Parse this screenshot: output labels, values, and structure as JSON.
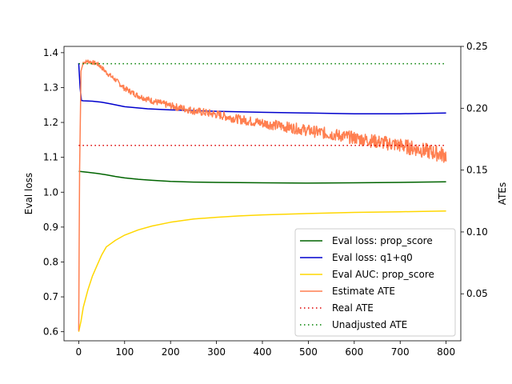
{
  "chart_data": {
    "type": "line",
    "title": "",
    "xlabel": "",
    "ylabel_left": "Eval loss",
    "ylabel_right": "ATEs",
    "xlim": [
      -32,
      832
    ],
    "ylim_left": [
      0.574,
      1.418
    ],
    "ylim_right": [
      0.012,
      0.25
    ],
    "xticks": [
      0,
      100,
      200,
      300,
      400,
      500,
      600,
      700,
      800
    ],
    "yticks_left": [
      0.6,
      0.7,
      0.8,
      0.9,
      1.0,
      1.1,
      1.2,
      1.3,
      1.4
    ],
    "yticks_right": [
      0.05,
      0.1,
      0.15,
      0.2,
      0.25
    ],
    "grid": false,
    "legend_position": "lower-right",
    "series": [
      {
        "name": "Eval loss: prop_score",
        "axis": "left",
        "style": "solid",
        "color": "#006400",
        "x": [
          0,
          20,
          40,
          60,
          80,
          100,
          130,
          160,
          200,
          250,
          300,
          400,
          500,
          600,
          700,
          800
        ],
        "y": [
          1.06,
          1.057,
          1.054,
          1.05,
          1.045,
          1.041,
          1.037,
          1.034,
          1.031,
          1.029,
          1.028,
          1.027,
          1.026,
          1.027,
          1.028,
          1.03
        ]
      },
      {
        "name": "Eval loss: q1+q0",
        "axis": "left",
        "style": "solid",
        "color": "#0000cd",
        "x": [
          0,
          3,
          6,
          10,
          30,
          50,
          70,
          100,
          150,
          200,
          300,
          400,
          500,
          600,
          700,
          800
        ],
        "y": [
          1.37,
          1.3,
          1.263,
          1.262,
          1.261,
          1.258,
          1.253,
          1.245,
          1.239,
          1.236,
          1.232,
          1.229,
          1.227,
          1.225,
          1.225,
          1.227
        ]
      },
      {
        "name": "Eval AUC: prop_score",
        "axis": "left",
        "style": "solid",
        "color": "#ffd700",
        "x": [
          0,
          5,
          10,
          20,
          30,
          40,
          50,
          60,
          80,
          100,
          130,
          160,
          200,
          250,
          300,
          350,
          400,
          500,
          600,
          700,
          800
        ],
        "y": [
          0.6,
          0.63,
          0.67,
          0.72,
          0.76,
          0.79,
          0.82,
          0.843,
          0.862,
          0.877,
          0.892,
          0.903,
          0.914,
          0.923,
          0.928,
          0.932,
          0.935,
          0.939,
          0.942,
          0.944,
          0.946
        ]
      },
      {
        "name": "Estimate ATE",
        "axis": "right",
        "style": "solid-noisy",
        "color": "#ff7f50",
        "x": [
          0,
          2,
          5,
          10,
          20,
          30,
          40,
          50,
          60,
          80,
          100,
          130,
          160,
          200,
          250,
          300,
          350,
          400,
          450,
          500,
          550,
          600,
          650,
          700,
          750,
          800
        ],
        "y": [
          0.02,
          0.15,
          0.23,
          0.237,
          0.238,
          0.237,
          0.236,
          0.233,
          0.229,
          0.223,
          0.216,
          0.21,
          0.206,
          0.202,
          0.198,
          0.195,
          0.191,
          0.188,
          0.185,
          0.182,
          0.179,
          0.176,
          0.173,
          0.17,
          0.166,
          0.162
        ]
      },
      {
        "name": "Real ATE",
        "axis": "right",
        "style": "dotted",
        "color": "#dd0000",
        "x": [
          0,
          800
        ],
        "y": [
          0.17,
          0.17
        ]
      },
      {
        "name": "Unadjusted ATE",
        "axis": "right",
        "style": "dotted",
        "color": "#008000",
        "x": [
          0,
          800
        ],
        "y": [
          0.236,
          0.236
        ]
      }
    ]
  }
}
